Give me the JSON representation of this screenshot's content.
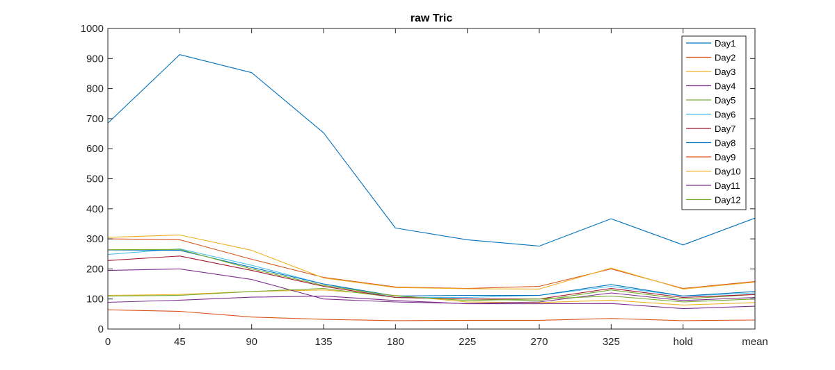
{
  "chart_data": {
    "type": "line",
    "title": "raw Tric",
    "xlabel": "",
    "ylabel": "",
    "categories": [
      "0",
      "45",
      "90",
      "135",
      "180",
      "225",
      "270",
      "325",
      "hold",
      "mean"
    ],
    "ylim": [
      0,
      1000
    ],
    "yticks": [
      0,
      100,
      200,
      300,
      400,
      500,
      600,
      700,
      800,
      900,
      1000
    ],
    "grid": false,
    "legend_position": "top-right",
    "series": [
      {
        "name": "Day1",
        "color": "#0072BD",
        "values": [
          685,
          913,
          853,
          653,
          336,
          297,
          276,
          367,
          280,
          369
        ]
      },
      {
        "name": "Day2",
        "color": "#D95319",
        "values": [
          64,
          59,
          40,
          32,
          28,
          29,
          29,
          35,
          28,
          30
        ]
      },
      {
        "name": "Day3",
        "color": "#EDB120",
        "values": [
          112,
          115,
          125,
          130,
          112,
          90,
          88,
          96,
          80,
          88
        ]
      },
      {
        "name": "Day4",
        "color": "#7E2F8E",
        "values": [
          195,
          200,
          165,
          100,
          90,
          85,
          90,
          120,
          95,
          105
        ]
      },
      {
        "name": "Day5",
        "color": "#77AC30",
        "values": [
          110,
          112,
          125,
          135,
          105,
          100,
          95,
          130,
          100,
          115
        ]
      },
      {
        "name": "Day6",
        "color": "#4DBEEE",
        "values": [
          248,
          267,
          212,
          150,
          105,
          105,
          112,
          142,
          110,
          120
        ]
      },
      {
        "name": "Day7",
        "color": "#A2142F",
        "values": [
          228,
          243,
          195,
          142,
          105,
          100,
          100,
          135,
          105,
          115
        ]
      },
      {
        "name": "Day8",
        "color": "#0072BD",
        "values": [
          263,
          262,
          205,
          150,
          110,
          112,
          112,
          148,
          110,
          125
        ]
      },
      {
        "name": "Day9",
        "color": "#D95319",
        "values": [
          300,
          297,
          232,
          172,
          140,
          135,
          142,
          200,
          135,
          158
        ]
      },
      {
        "name": "Day10",
        "color": "#EDB120",
        "values": [
          305,
          313,
          262,
          170,
          138,
          134,
          133,
          203,
          133,
          156
        ]
      },
      {
        "name": "Day11",
        "color": "#7E2F8E",
        "values": [
          89,
          96,
          106,
          110,
          95,
          84,
          84,
          85,
          68,
          76
        ]
      },
      {
        "name": "Day12",
        "color": "#77AC30",
        "values": [
          264,
          265,
          200,
          145,
          110,
          95,
          100,
          110,
          90,
          100
        ]
      }
    ]
  }
}
